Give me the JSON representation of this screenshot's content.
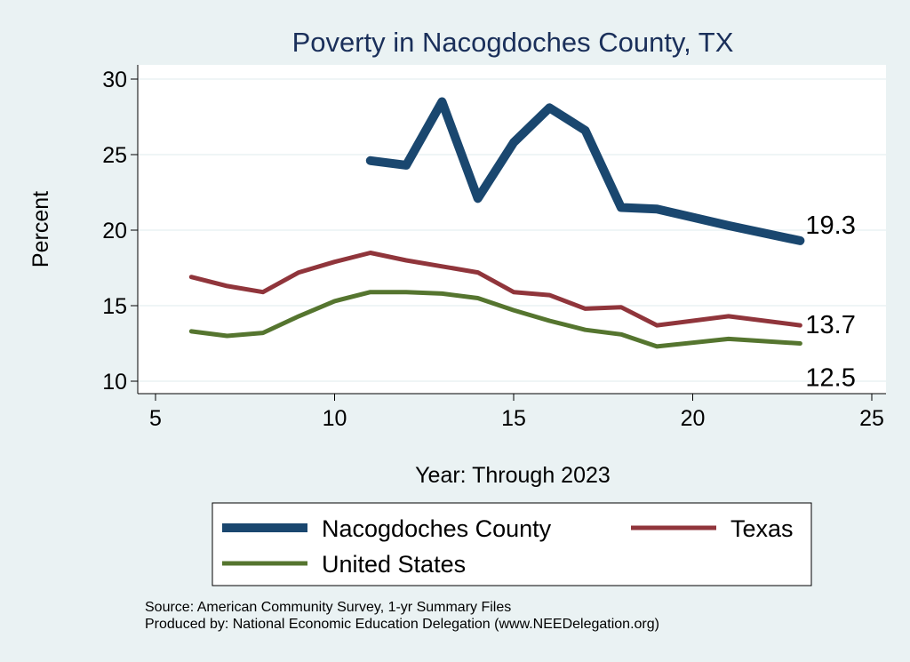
{
  "chart_data": {
    "type": "line",
    "title": "Poverty in Nacogdoches County, TX",
    "xlabel": "Year: Through 2023",
    "ylabel": "Percent",
    "xlim": [
      5,
      25
    ],
    "ylim": [
      10,
      30
    ],
    "xticks": [
      5,
      10,
      15,
      20,
      25
    ],
    "yticks": [
      10,
      15,
      20,
      25,
      30
    ],
    "grid": true,
    "legend_placement": "bottom",
    "series": [
      {
        "name": "Nacogdoches County",
        "color": "#1a476f",
        "x": [
          11,
          12,
          13,
          14,
          15,
          16,
          17,
          18,
          19,
          21,
          23
        ],
        "y": [
          24.6,
          24.3,
          28.5,
          22.1,
          25.8,
          28.1,
          26.6,
          21.5,
          21.4,
          20.3,
          19.3
        ],
        "end_label": "19.3"
      },
      {
        "name": "Texas",
        "color": "#90353b",
        "x": [
          6,
          7,
          8,
          9,
          10,
          11,
          12,
          13,
          14,
          15,
          16,
          17,
          18,
          19,
          21,
          23
        ],
        "y": [
          16.9,
          16.3,
          15.9,
          17.2,
          17.9,
          18.5,
          18.0,
          17.6,
          17.2,
          15.9,
          15.7,
          14.8,
          14.9,
          13.7,
          14.3,
          13.7
        ],
        "end_label": "13.7"
      },
      {
        "name": "United States",
        "color": "#55752f",
        "x": [
          6,
          7,
          8,
          9,
          10,
          11,
          12,
          13,
          14,
          15,
          16,
          17,
          18,
          19,
          21,
          23
        ],
        "y": [
          13.3,
          13.0,
          13.2,
          14.3,
          15.3,
          15.9,
          15.9,
          15.8,
          15.5,
          14.7,
          14.0,
          13.4,
          13.1,
          12.3,
          12.8,
          12.5
        ],
        "end_label": "12.5"
      }
    ]
  },
  "notes": {
    "source": "Source: American Community Survey, 1-yr Summary Files",
    "produced": "Produced by: National Economic Education Delegation (www.NEEDelegation.org)"
  }
}
